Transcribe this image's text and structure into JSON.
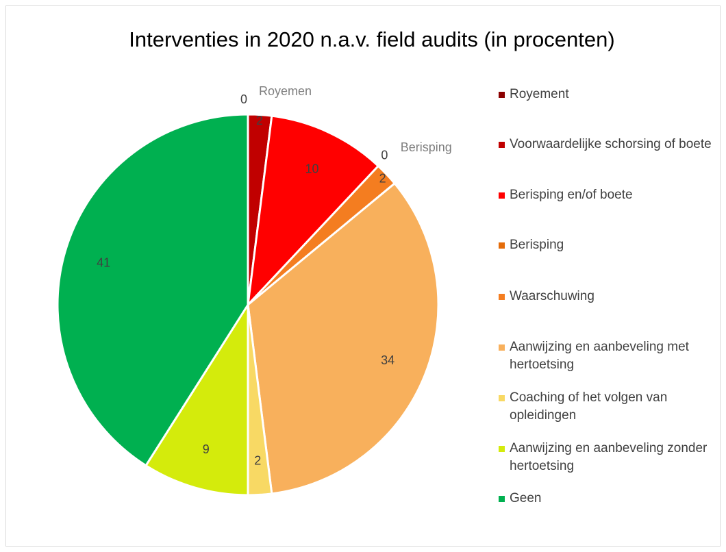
{
  "chart_data": {
    "type": "pie",
    "title": "Interventies in 2020 n.a.v. field audits (in procenten)",
    "categories": [
      "Royement",
      "Voorwaardelijke schorsing of boete",
      "Berisping en/of boete",
      "Berisping",
      "Waarschuwing",
      "Aanwijzing en aanbeveling met hertoetsing",
      "Coaching of het volgen van opleidingen",
      "Aanwijzing en aanbeveling zonder hertoetsing",
      "Geen"
    ],
    "values": [
      0,
      2,
      10,
      0,
      2,
      34,
      2,
      9,
      41
    ],
    "colors": [
      "#8b0000",
      "#c00000",
      "#ff0000",
      "#e46c0a",
      "#f47d20",
      "#f8b05c",
      "#f8d964",
      "#d4eb0c",
      "#00b050"
    ],
    "outside_labels": [
      "Royemen",
      "Berisping"
    ],
    "legend_position": "right"
  }
}
